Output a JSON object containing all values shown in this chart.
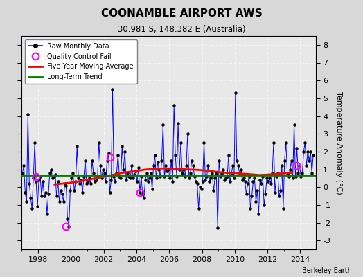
{
  "title": "COONAMBLE AIRPORT AWS",
  "subtitle": "30.981 S, 148.382 E (Australia)",
  "ylabel": "Temperature Anomaly (°C)",
  "credit": "Berkeley Earth",
  "ylim": [
    -3.5,
    8.5
  ],
  "xlim": [
    1997.0,
    2014.95
  ],
  "yticks": [
    -3,
    -2,
    -1,
    0,
    1,
    2,
    3,
    4,
    5,
    6,
    7,
    8
  ],
  "xticks": [
    1998,
    2000,
    2002,
    2004,
    2006,
    2008,
    2010,
    2012,
    2014
  ],
  "long_term_trend_y": 0.65,
  "bg_color": "#d8d8d8",
  "plot_bg_color": "#e8e8e8",
  "raw_data": {
    "times": [
      1997.042,
      1997.125,
      1997.208,
      1997.292,
      1997.375,
      1997.458,
      1997.542,
      1997.625,
      1997.708,
      1997.792,
      1997.875,
      1997.958,
      1998.042,
      1998.125,
      1998.208,
      1998.292,
      1998.375,
      1998.458,
      1998.542,
      1998.625,
      1998.708,
      1998.792,
      1998.875,
      1998.958,
      1999.042,
      1999.125,
      1999.208,
      1999.292,
      1999.375,
      1999.458,
      1999.542,
      1999.625,
      1999.708,
      1999.792,
      1999.875,
      1999.958,
      2000.042,
      2000.125,
      2000.208,
      2000.292,
      2000.375,
      2000.458,
      2000.542,
      2000.625,
      2000.708,
      2000.792,
      2000.875,
      2000.958,
      2001.042,
      2001.125,
      2001.208,
      2001.292,
      2001.375,
      2001.458,
      2001.542,
      2001.625,
      2001.708,
      2001.792,
      2001.875,
      2001.958,
      2002.042,
      2002.125,
      2002.208,
      2002.292,
      2002.375,
      2002.458,
      2002.542,
      2002.625,
      2002.708,
      2002.792,
      2002.875,
      2002.958,
      2003.042,
      2003.125,
      2003.208,
      2003.292,
      2003.375,
      2003.458,
      2003.542,
      2003.625,
      2003.708,
      2003.792,
      2003.875,
      2003.958,
      2004.042,
      2004.125,
      2004.208,
      2004.292,
      2004.375,
      2004.458,
      2004.542,
      2004.625,
      2004.708,
      2004.792,
      2004.875,
      2004.958,
      2005.042,
      2005.125,
      2005.208,
      2005.292,
      2005.375,
      2005.458,
      2005.542,
      2005.625,
      2005.708,
      2005.792,
      2005.875,
      2005.958,
      2006.042,
      2006.125,
      2006.208,
      2006.292,
      2006.375,
      2006.458,
      2006.542,
      2006.625,
      2006.708,
      2006.792,
      2006.875,
      2006.958,
      2007.042,
      2007.125,
      2007.208,
      2007.292,
      2007.375,
      2007.458,
      2007.542,
      2007.625,
      2007.708,
      2007.792,
      2007.875,
      2007.958,
      2008.042,
      2008.125,
      2008.208,
      2008.292,
      2008.375,
      2008.458,
      2008.542,
      2008.625,
      2008.708,
      2008.792,
      2008.875,
      2008.958,
      2009.042,
      2009.125,
      2009.208,
      2009.292,
      2009.375,
      2009.458,
      2009.542,
      2009.625,
      2009.708,
      2009.792,
      2009.875,
      2009.958,
      2010.042,
      2010.125,
      2010.208,
      2010.292,
      2010.375,
      2010.458,
      2010.542,
      2010.625,
      2010.708,
      2010.792,
      2010.875,
      2010.958,
      2011.042,
      2011.125,
      2011.208,
      2011.292,
      2011.375,
      2011.458,
      2011.542,
      2011.625,
      2011.708,
      2011.792,
      2011.875,
      2011.958,
      2012.042,
      2012.125,
      2012.208,
      2012.292,
      2012.375,
      2012.458,
      2012.542,
      2012.625,
      2012.708,
      2012.792,
      2012.875,
      2012.958,
      2013.042,
      2013.125,
      2013.208,
      2013.292,
      2013.375,
      2013.458,
      2013.542,
      2013.625,
      2013.708,
      2013.792,
      2013.875,
      2013.958,
      2014.042,
      2014.125,
      2014.208,
      2014.292,
      2014.375,
      2014.458,
      2014.542,
      2014.625,
      2014.708,
      2014.792
    ],
    "values": [
      0.8,
      1.2,
      -0.3,
      -0.8,
      4.1,
      0.2,
      -0.6,
      -1.2,
      0.5,
      2.5,
      0.3,
      -1.1,
      0.4,
      0.6,
      -0.5,
      0.3,
      -0.5,
      -0.3,
      -1.5,
      -0.4,
      0.8,
      1.0,
      0.5,
      0.6,
      0.7,
      -0.5,
      0.3,
      -0.8,
      -0.2,
      -0.4,
      -0.8,
      0.2,
      0.1,
      -1.8,
      -2.2,
      -0.2,
      0.5,
      0.8,
      -0.2,
      0.3,
      2.3,
      0.5,
      0.2,
      0.4,
      -0.3,
      0.6,
      1.5,
      0.2,
      0.3,
      0.5,
      0.2,
      1.5,
      0.8,
      0.3,
      0.4,
      0.6,
      2.5,
      1.2,
      0.5,
      1.0,
      0.8,
      0.3,
      1.5,
      1.9,
      -0.3,
      0.4,
      5.5,
      0.6,
      0.3,
      0.8,
      1.8,
      0.6,
      0.5,
      2.3,
      1.0,
      2.0,
      0.4,
      0.8,
      0.6,
      0.5,
      1.2,
      0.5,
      0.7,
      0.9,
      0.3,
      1.1,
      -0.3,
      0.6,
      -0.4,
      -0.6,
      0.4,
      0.8,
      0.3,
      0.5,
      0.8,
      -0.1,
      1.2,
      1.8,
      0.5,
      1.4,
      1.0,
      0.6,
      1.5,
      3.5,
      0.6,
      1.2,
      0.9,
      1.0,
      0.5,
      1.5,
      0.3,
      4.6,
      1.8,
      0.6,
      3.6,
      1.0,
      2.5,
      0.8,
      1.0,
      0.6,
      1.2,
      3.0,
      0.5,
      0.8,
      1.5,
      1.2,
      0.6,
      0.3,
      0.2,
      -1.2,
      0.0,
      -0.1,
      0.3,
      2.5,
      0.4,
      0.6,
      1.2,
      0.3,
      0.5,
      0.8,
      -0.2,
      0.5,
      0.8,
      -2.3,
      1.5,
      0.6,
      0.8,
      1.0,
      0.4,
      0.5,
      0.6,
      1.8,
      0.3,
      0.7,
      1.2,
      0.5,
      5.3,
      1.5,
      1.2,
      0.8,
      1.0,
      0.4,
      0.5,
      0.3,
      -0.4,
      0.2,
      0.6,
      -1.2,
      -0.5,
      0.3,
      0.5,
      -0.8,
      -0.2,
      -1.5,
      0.4,
      0.2,
      0.6,
      -1.0,
      -0.4,
      0.5,
      0.3,
      0.5,
      0.2,
      0.8,
      2.5,
      -0.3,
      0.6,
      0.8,
      -0.5,
      -0.2,
      1.2,
      -1.2,
      1.5,
      2.5,
      0.8,
      0.6,
      1.0,
      1.5,
      0.5,
      3.5,
      0.6,
      2.2,
      0.8,
      1.2,
      0.6,
      0.8,
      2.0,
      2.5,
      1.2,
      2.0,
      1.5,
      2.0,
      0.8,
      1.8
    ]
  },
  "qc_fail_times": [
    1997.875,
    1999.708,
    2002.375,
    2004.208,
    2013.792
  ],
  "qc_fail_values": [
    0.6,
    -2.2,
    1.7,
    -0.3,
    1.2
  ],
  "moving_avg": {
    "times": [
      1999.0,
      1999.5,
      2000.0,
      2000.5,
      2001.0,
      2001.5,
      2002.0,
      2002.5,
      2003.0,
      2003.5,
      2004.0,
      2004.5,
      2005.0,
      2005.5,
      2006.0,
      2006.5,
      2007.0,
      2007.5,
      2008.0,
      2008.5,
      2009.0,
      2009.5,
      2010.0,
      2010.5,
      2011.0,
      2011.5,
      2012.0,
      2012.5,
      2013.0,
      2013.5
    ],
    "values": [
      0.15,
      0.2,
      0.25,
      0.32,
      0.4,
      0.5,
      0.58,
      0.68,
      0.78,
      0.85,
      0.9,
      0.98,
      1.02,
      1.05,
      1.05,
      1.02,
      1.0,
      0.98,
      0.95,
      0.9,
      0.85,
      0.8,
      0.8,
      0.75,
      0.72,
      0.68,
      0.7,
      0.74,
      0.78,
      0.8
    ]
  }
}
